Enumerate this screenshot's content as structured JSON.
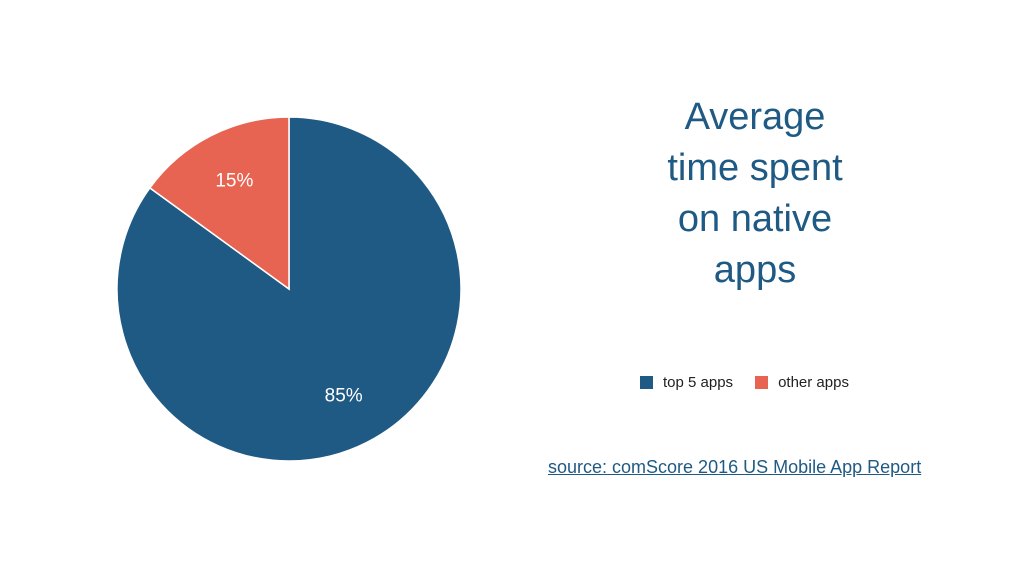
{
  "chart_data": {
    "type": "pie",
    "title": "Average time spent on native apps",
    "title_lines": [
      "Average",
      "time spent",
      "on native",
      "apps"
    ],
    "categories": [
      "top 5 apps",
      "other apps"
    ],
    "values": [
      85,
      15
    ],
    "labels": [
      "85%",
      "15%"
    ],
    "colors": [
      "#1f5a84",
      "#e86452"
    ],
    "legend_position": "bottom-center-right",
    "start_angle_deg": 0,
    "direction": "clockwise"
  },
  "source": {
    "text": "source: comScore 2016 US Mobile App Report"
  }
}
